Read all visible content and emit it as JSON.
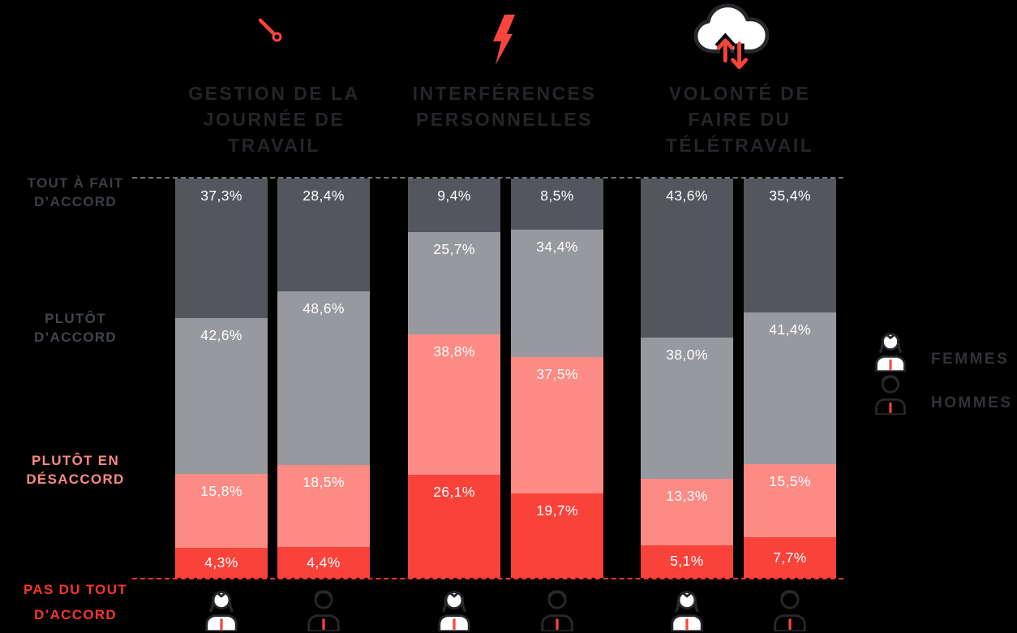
{
  "colors": {
    "background": "#000000",
    "accent_red": "#f8453c",
    "segments": [
      "#53565c",
      "#97999e",
      "#fb8b84",
      "#f8423a"
    ],
    "title_text": "#232529",
    "scale_dark": "#3a3e45",
    "scale_gray": "#41454c",
    "scale_salmon": "#f98b85",
    "scale_red": "#f5372e",
    "legend_text": "#303237",
    "top_gridline": "#6e727a",
    "baseline": "#f8382e",
    "value_text": "#ffffff"
  },
  "header": {
    "categories": [
      {
        "icon": "needle-icon",
        "title": "GESTION DE LA\nJOURNÉE DE\nTRAVAIL"
      },
      {
        "icon": "lightning-bolt-icon",
        "title": "INTERFÉRENCES\nPERSONNELLES"
      },
      {
        "icon": "cloud-sync-icon",
        "title": "VOLONTÉ DE\nFAIRE DU\nTÉLÉTRAVAIL"
      }
    ]
  },
  "scale_labels": [
    {
      "text": "TOUT À FAIT\nD’ACCORD",
      "color_key": "scale_dark"
    },
    {
      "text": "PLUTÔT\nD’ACCORD",
      "color_key": "scale_gray"
    },
    {
      "text": "PLUTÔT EN\nDÉSACCORD",
      "color_key": "scale_salmon"
    },
    {
      "text": "PAS DU TOUT\nD’ACCORD",
      "color_key": "scale_red"
    }
  ],
  "legend": {
    "items": [
      {
        "icon": "woman-icon",
        "label": "FEMMES"
      },
      {
        "icon": "man-icon",
        "label": "HOMMES"
      }
    ]
  },
  "chart_data": {
    "type": "bar",
    "stacked": true,
    "orientation": "vertical",
    "value_unit": "%",
    "ylim": [
      0,
      100
    ],
    "grid": "dashed top and bottom baselines only",
    "legend_position": "right",
    "segment_keys": [
      "tout-a-fait-daccord",
      "plutot-daccord",
      "plutot-en-desaccord",
      "pas-du-tout-daccord"
    ],
    "segment_labels": [
      "TOUT À FAIT D’ACCORD",
      "PLUTÔT D’ACCORD",
      "PLUTÔT EN DÉSACCORD",
      "PAS DU TOUT D’ACCORD"
    ],
    "series_per_group": [
      "FEMMES",
      "HOMMES"
    ],
    "groups": [
      {
        "title": "GESTION DE LA JOURNÉE DE TRAVAIL",
        "bars": [
          {
            "series": "FEMMES",
            "values": [
              37.3,
              42.6,
              15.8,
              4.3
            ],
            "labels": [
              "37,3%",
              "42,6%",
              "15,8%",
              "4,3%"
            ]
          },
          {
            "series": "HOMMES",
            "values": [
              28.4,
              48.6,
              18.5,
              4.4
            ],
            "labels": [
              "28,4%",
              "48,6%",
              "18,5%",
              "4,4%"
            ]
          }
        ]
      },
      {
        "title": "INTERFÉRENCES PERSONNELLES",
        "bars": [
          {
            "series": "FEMMES",
            "values": [
              9.4,
              25.7,
              38.8,
              26.1
            ],
            "labels": [
              "9,4%",
              "25,7%",
              "38,8%",
              "26,1%"
            ]
          },
          {
            "series": "HOMMES",
            "values": [
              8.5,
              34.4,
              37.5,
              19.7
            ],
            "labels": [
              "8,5%",
              "34,4%",
              "37,5%",
              "19,7%"
            ]
          }
        ]
      },
      {
        "title": "VOLONTÉ DE FAIRE DU TÉLÉTRAVAIL",
        "bars": [
          {
            "series": "FEMMES",
            "values": [
              43.6,
              38.0,
              13.3,
              5.1
            ],
            "labels": [
              "43,6%",
              "38,0%",
              "13,3%",
              "5,1%"
            ]
          },
          {
            "series": "HOMMES",
            "values": [
              35.4,
              41.4,
              15.5,
              7.7
            ],
            "labels": [
              "35,4%",
              "41,4%",
              "15,5%",
              "7,7%"
            ]
          }
        ]
      }
    ]
  }
}
